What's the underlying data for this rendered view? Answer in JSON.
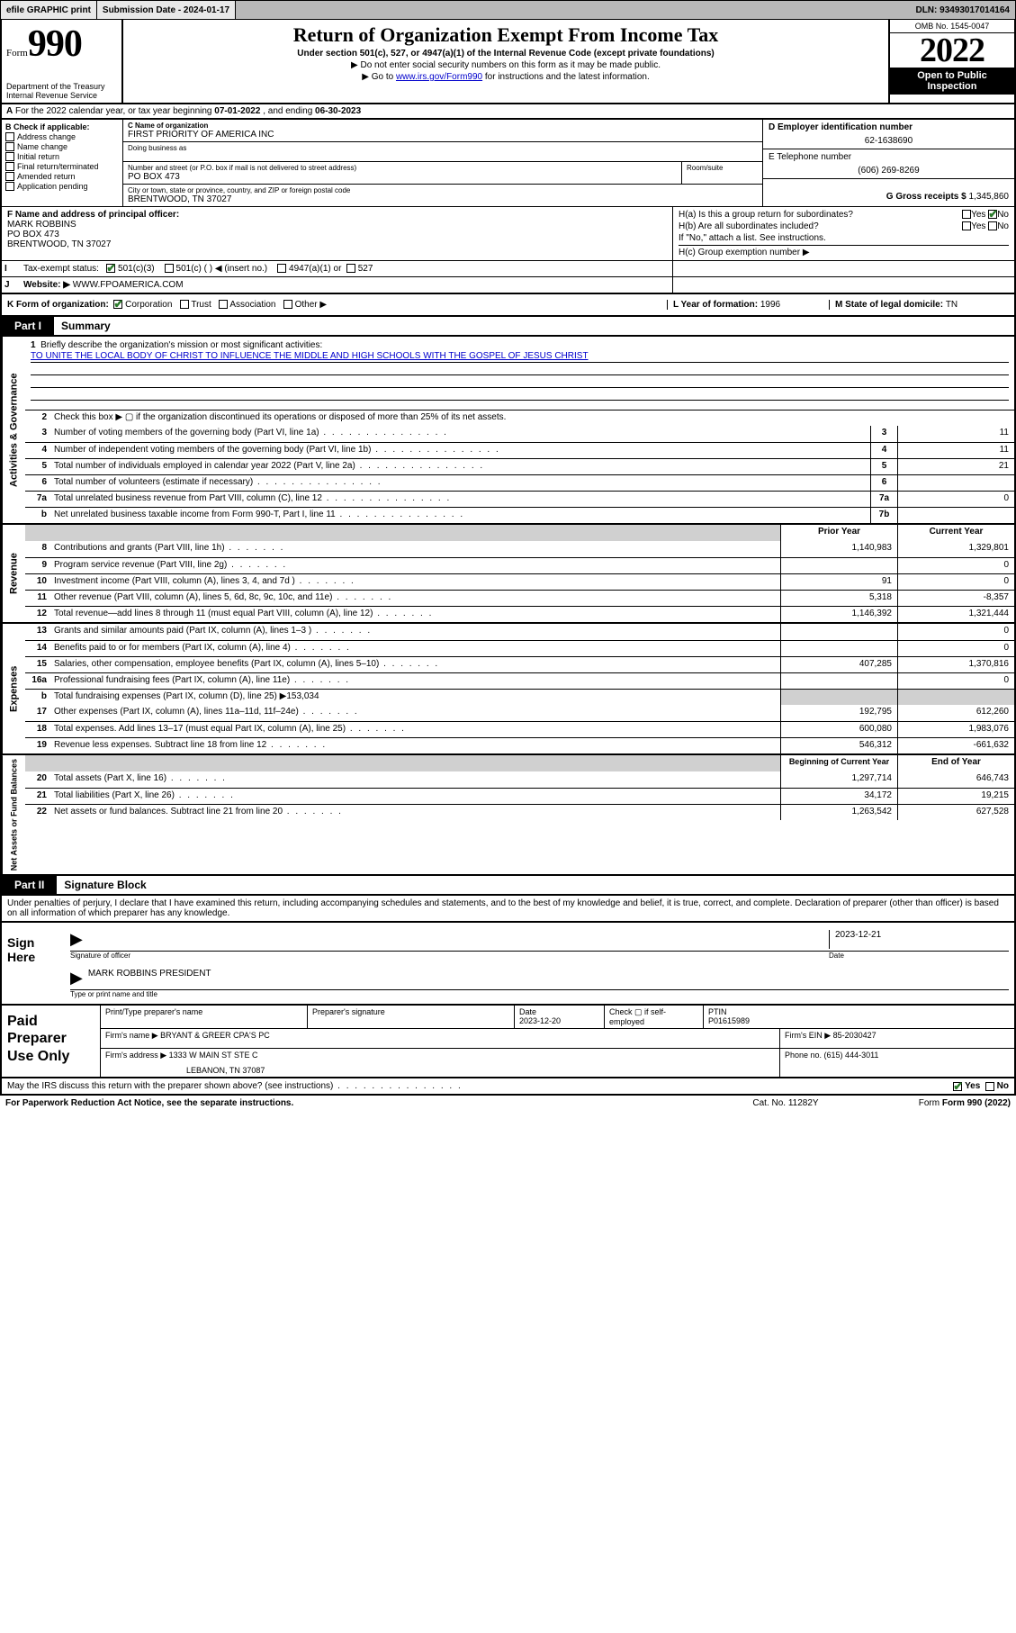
{
  "topbar": {
    "efile": "efile GRAPHIC print",
    "submission_label": "Submission Date - 2024-01-17",
    "dln_label": "DLN: 93493017014164"
  },
  "header": {
    "form_word": "Form",
    "form_num": "990",
    "dept": "Department of the Treasury",
    "irs": "Internal Revenue Service",
    "title": "Return of Organization Exempt From Income Tax",
    "subtitle": "Under section 501(c), 527, or 4947(a)(1) of the Internal Revenue Code (except private foundations)",
    "note1": "▶ Do not enter social security numbers on this form as it may be made public.",
    "note2_pre": "▶ Go to ",
    "note2_link": "www.irs.gov/Form990",
    "note2_post": " for instructions and the latest information.",
    "omb": "OMB No. 1545-0047",
    "year": "2022",
    "inspect1": "Open to Public",
    "inspect2": "Inspection"
  },
  "row_a": {
    "label_a": "A",
    "text": "For the 2022 calendar year, or tax year beginning ",
    "begin": "07-01-2022",
    "mid": " , and ending ",
    "end": "06-30-2023"
  },
  "col_b": {
    "label": "B Check if applicable:",
    "items": [
      "Address change",
      "Name change",
      "Initial return",
      "Final return/terminated",
      "Amended return",
      "Application pending"
    ]
  },
  "col_c": {
    "c_label": "C Name of organization",
    "name": "FIRST PRIORITY OF AMERICA INC",
    "dba_label": "Doing business as",
    "addr_label": "Number and street (or P.O. box if mail is not delivered to street address)",
    "room_label": "Room/suite",
    "addr": "PO BOX 473",
    "city_label": "City or town, state or province, country, and ZIP or foreign postal code",
    "city": "BRENTWOOD, TN  37027"
  },
  "col_d": {
    "d_label": "D Employer identification number",
    "ein": "62-1638690",
    "e_label": "E Telephone number",
    "phone": "(606) 269-8269",
    "g_label": "G Gross receipts $ ",
    "gross": "1,345,860"
  },
  "row_f": {
    "label": "F  Name and address of principal officer:",
    "name": "MARK ROBBINS",
    "addr1": "PO BOX 473",
    "addr2": "BRENTWOOD, TN  37027"
  },
  "row_h": {
    "ha": "H(a)  Is this a group return for subordinates?",
    "hb": "H(b)  Are all subordinates included?",
    "hb_note": "If \"No,\" attach a list. See instructions.",
    "hc": "H(c)  Group exemption number ▶",
    "yes": "Yes",
    "no": "No"
  },
  "row_i": {
    "label": "I",
    "text": "Tax-exempt status:",
    "opt1": "501(c)(3)",
    "opt2": "501(c) (  ) ◀ (insert no.)",
    "opt3": "4947(a)(1) or",
    "opt4": "527"
  },
  "row_j": {
    "label": "J",
    "text": "Website: ▶ ",
    "url": "WWW.FPOAMERICA.COM"
  },
  "row_k": {
    "label": "K Form of organization:",
    "opts": [
      "Corporation",
      "Trust",
      "Association",
      "Other ▶"
    ],
    "l_label": "L Year of formation: ",
    "l_val": "1996",
    "m_label": "M State of legal domicile: ",
    "m_val": "TN"
  },
  "part1": {
    "tab": "Part I",
    "title": "Summary"
  },
  "summary": {
    "gov_label": "Activities & Governance",
    "rev_label": "Revenue",
    "exp_label": "Expenses",
    "nab_label": "Net Assets or Fund Balances",
    "line1_label": "Briefly describe the organization's mission or most significant activities:",
    "mission": "TO UNITE THE LOCAL BODY OF CHRIST TO INFLUENCE THE MIDDLE AND HIGH SCHOOLS WITH THE GOSPEL OF JESUS CHRIST",
    "line2": "Check this box ▶ ▢  if the organization discontinued its operations or disposed of more than 25% of its net assets.",
    "lines_gov": [
      {
        "n": "3",
        "d": "Number of voting members of the governing body (Part VI, line 1a)",
        "b": "3",
        "v": "11"
      },
      {
        "n": "4",
        "d": "Number of independent voting members of the governing body (Part VI, line 1b)",
        "b": "4",
        "v": "11"
      },
      {
        "n": "5",
        "d": "Total number of individuals employed in calendar year 2022 (Part V, line 2a)",
        "b": "5",
        "v": "21"
      },
      {
        "n": "6",
        "d": "Total number of volunteers (estimate if necessary)",
        "b": "6",
        "v": ""
      },
      {
        "n": "7a",
        "d": "Total unrelated business revenue from Part VIII, column (C), line 12",
        "b": "7a",
        "v": "0"
      },
      {
        "n": "b",
        "d": "Net unrelated business taxable income from Form 990-T, Part I, line 11",
        "b": "7b",
        "v": ""
      }
    ],
    "hdr_prior": "Prior Year",
    "hdr_curr": "Current Year",
    "lines_rev": [
      {
        "n": "8",
        "d": "Contributions and grants (Part VIII, line 1h)",
        "p": "1,140,983",
        "c": "1,329,801"
      },
      {
        "n": "9",
        "d": "Program service revenue (Part VIII, line 2g)",
        "p": "",
        "c": "0"
      },
      {
        "n": "10",
        "d": "Investment income (Part VIII, column (A), lines 3, 4, and 7d )",
        "p": "91",
        "c": "0"
      },
      {
        "n": "11",
        "d": "Other revenue (Part VIII, column (A), lines 5, 6d, 8c, 9c, 10c, and 11e)",
        "p": "5,318",
        "c": "-8,357"
      },
      {
        "n": "12",
        "d": "Total revenue—add lines 8 through 11 (must equal Part VIII, column (A), line 12)",
        "p": "1,146,392",
        "c": "1,321,444"
      }
    ],
    "lines_exp": [
      {
        "n": "13",
        "d": "Grants and similar amounts paid (Part IX, column (A), lines 1–3 )",
        "p": "",
        "c": "0"
      },
      {
        "n": "14",
        "d": "Benefits paid to or for members (Part IX, column (A), line 4)",
        "p": "",
        "c": "0"
      },
      {
        "n": "15",
        "d": "Salaries, other compensation, employee benefits (Part IX, column (A), lines 5–10)",
        "p": "407,285",
        "c": "1,370,816"
      },
      {
        "n": "16a",
        "d": "Professional fundraising fees (Part IX, column (A), line 11e)",
        "p": "",
        "c": "0"
      }
    ],
    "line16b": "Total fundraising expenses (Part IX, column (D), line 25) ▶153,034",
    "lines_exp2": [
      {
        "n": "17",
        "d": "Other expenses (Part IX, column (A), lines 11a–11d, 11f–24e)",
        "p": "192,795",
        "c": "612,260"
      },
      {
        "n": "18",
        "d": "Total expenses. Add lines 13–17 (must equal Part IX, column (A), line 25)",
        "p": "600,080",
        "c": "1,983,076"
      },
      {
        "n": "19",
        "d": "Revenue less expenses. Subtract line 18 from line 12",
        "p": "546,312",
        "c": "-661,632"
      }
    ],
    "hdr_beg": "Beginning of Current Year",
    "hdr_end": "End of Year",
    "lines_nab": [
      {
        "n": "20",
        "d": "Total assets (Part X, line 16)",
        "p": "1,297,714",
        "c": "646,743"
      },
      {
        "n": "21",
        "d": "Total liabilities (Part X, line 26)",
        "p": "34,172",
        "c": "19,215"
      },
      {
        "n": "22",
        "d": "Net assets or fund balances. Subtract line 21 from line 20",
        "p": "1,263,542",
        "c": "627,528"
      }
    ]
  },
  "part2": {
    "tab": "Part II",
    "title": "Signature Block"
  },
  "sig": {
    "intro": "Under penalties of perjury, I declare that I have examined this return, including accompanying schedules and statements, and to the best of my knowledge and belief, it is true, correct, and complete. Declaration of preparer (other than officer) is based on all information of which preparer has any knowledge.",
    "sign_here": "Sign Here",
    "sig_officer": "Signature of officer",
    "date_label": "Date",
    "date": "2023-12-21",
    "officer_name": "MARK ROBBINS PRESIDENT",
    "type_name": "Type or print name and title"
  },
  "paid": {
    "label": "Paid Preparer Use Only",
    "h1": "Print/Type preparer's name",
    "h2": "Preparer's signature",
    "h3": "Date",
    "date": "2023-12-20",
    "h4": "Check ▢ if self-employed",
    "h5": "PTIN",
    "ptin": "P01615989",
    "firm_name_l": "Firm's name    ▶ ",
    "firm_name": "BRYANT & GREER CPA'S PC",
    "firm_ein_l": "Firm's EIN ▶ ",
    "firm_ein": "85-2030427",
    "firm_addr_l": "Firm's address ▶ ",
    "firm_addr1": "1333 W MAIN ST STE C",
    "firm_addr2": "LEBANON, TN  37087",
    "phone_l": "Phone no. ",
    "phone": "(615) 444-3011"
  },
  "footer": {
    "discuss": "May the IRS discuss this return with the preparer shown above? (see instructions)",
    "yes": "Yes",
    "no": "No",
    "pra": "For Paperwork Reduction Act Notice, see the separate instructions.",
    "cat": "Cat. No. 11282Y",
    "form": "Form 990 (2022)"
  }
}
